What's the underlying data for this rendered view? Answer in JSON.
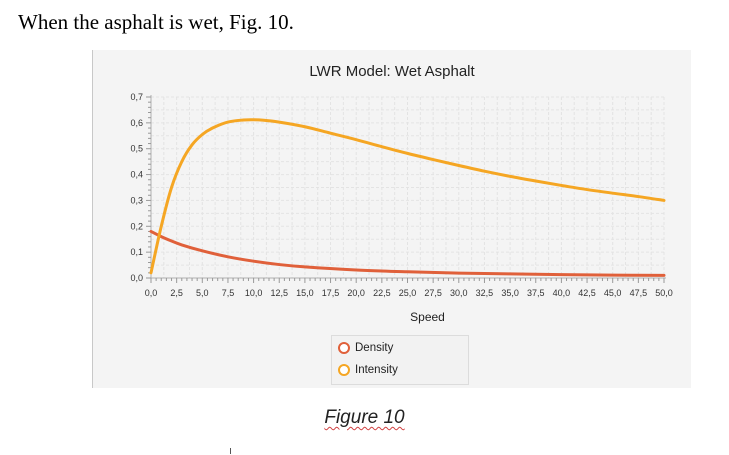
{
  "document": {
    "intro_text": "When the asphalt is wet, Fig. 10.",
    "caption": "Figure 10"
  },
  "chart_data": {
    "type": "line",
    "title": "LWR Model: Wet Asphalt",
    "xlabel": "Speed",
    "ylabel": "",
    "xlim": [
      0,
      50
    ],
    "ylim": [
      0,
      0.7
    ],
    "x_ticks": [
      "0,0",
      "2,5",
      "5,0",
      "7,5",
      "10,0",
      "12,5",
      "15,0",
      "17,5",
      "20,0",
      "22,5",
      "25,0",
      "27,5",
      "30,0",
      "32,5",
      "35,0",
      "37,5",
      "40,0",
      "42,5",
      "45,0",
      "47,5",
      "50,0"
    ],
    "y_ticks": [
      "0,0",
      "0,1",
      "0,2",
      "0,3",
      "0,4",
      "0,5",
      "0,6",
      "0,7"
    ],
    "grid": true,
    "legend_position": "bottom",
    "series": [
      {
        "name": "Density",
        "color": "#e0603a",
        "x": [
          0,
          1,
          2,
          3,
          5,
          7.5,
          10,
          12.5,
          15,
          20,
          25,
          30,
          35,
          40,
          45,
          50
        ],
        "y": [
          0.18,
          0.16,
          0.143,
          0.128,
          0.105,
          0.082,
          0.065,
          0.052,
          0.043,
          0.031,
          0.024,
          0.019,
          0.016,
          0.013,
          0.011,
          0.01
        ]
      },
      {
        "name": "Intensity",
        "color": "#f5a623",
        "x": [
          0,
          1,
          2,
          3,
          4,
          5,
          6,
          7.5,
          9,
          10,
          11,
          12.5,
          15,
          17.5,
          20,
          22.5,
          25,
          27.5,
          30,
          32.5,
          35,
          37.5,
          40,
          42.5,
          45,
          47.5,
          50
        ],
        "y": [
          0.02,
          0.2,
          0.35,
          0.45,
          0.515,
          0.555,
          0.58,
          0.603,
          0.611,
          0.612,
          0.61,
          0.603,
          0.585,
          0.56,
          0.535,
          0.508,
          0.482,
          0.458,
          0.435,
          0.413,
          0.393,
          0.375,
          0.358,
          0.342,
          0.328,
          0.315,
          0.3
        ]
      }
    ]
  }
}
